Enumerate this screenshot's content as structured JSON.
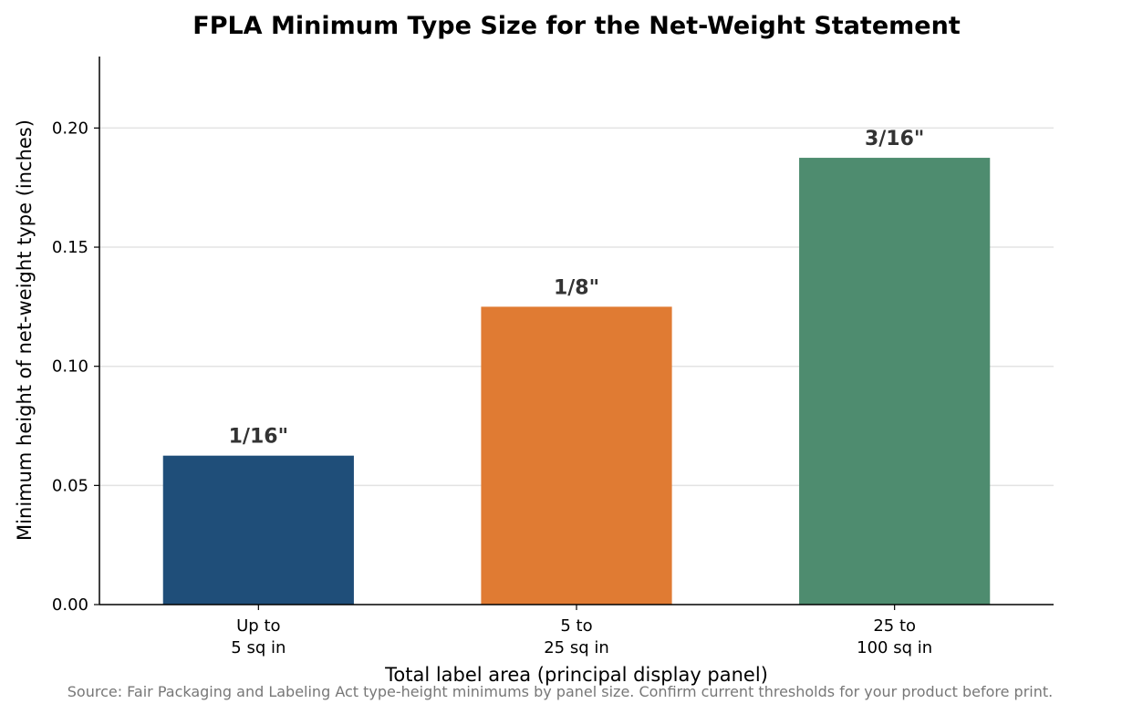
{
  "chart_data": {
    "type": "bar",
    "title": "FPLA Minimum Type Size for the Net-Weight Statement",
    "xlabel": "Total label area (principal display panel)",
    "ylabel": "Minimum height of net-weight type (inches)",
    "categories": [
      [
        "Up to",
        "5 sq in"
      ],
      [
        "5 to",
        "25 sq in"
      ],
      [
        "25 to",
        "100 sq in"
      ]
    ],
    "values": [
      0.0625,
      0.125,
      0.1875
    ],
    "value_labels": [
      "1/16\"",
      "1/8\"",
      "3/16\""
    ],
    "colors": [
      "#1f4e79",
      "#e07b33",
      "#4e8c6f"
    ],
    "ylim": [
      0,
      0.23
    ],
    "yticks": [
      "0.00",
      "0.05",
      "0.10",
      "0.15",
      "0.20"
    ],
    "grid": "horizontal",
    "legend": "none"
  },
  "source_note": "Source: Fair Packaging and Labeling Act type-height minimums by panel size. Confirm current thresholds for your product before print."
}
